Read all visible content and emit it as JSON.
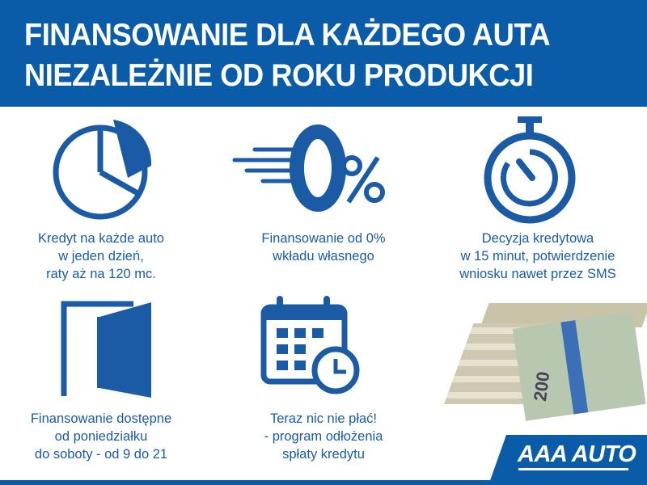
{
  "header": {
    "line1": "FINANSOWANIE DLA KAŻDEGO AUTA",
    "line2": "NIEZALEŻNIE OD ROKU PRODUKCJI"
  },
  "features": [
    {
      "icon": "pie-chart-icon",
      "lines": [
        "Kredyt na każde auto",
        "w jeden dzień,",
        "raty aż na 120 mc."
      ]
    },
    {
      "icon": "zero-percent-icon",
      "lines": [
        "Finansowanie od 0%",
        "wkładu własnego"
      ]
    },
    {
      "icon": "stopwatch-icon",
      "lines": [
        "Decyzja kredytowa",
        "w 15 minut, potwierdzenie",
        "wniosku nawet przez SMS"
      ]
    },
    {
      "icon": "door-icon",
      "lines": [
        "Finansowanie dostępne",
        "od poniedziałku",
        "do soboty - od 9 do 21"
      ]
    },
    {
      "icon": "calendar-clock-icon",
      "lines": [
        "Teraz nic nie płać!",
        "- program odłożenia",
        "spłaty kredytu"
      ]
    }
  ],
  "money_image": {
    "icon": "banknotes-stack-icon",
    "note_value": "200"
  },
  "logo": {
    "text": "AAA AUTO"
  },
  "colors": {
    "brand_blue": "#0b5ca8",
    "text_blue": "#1b5ba6"
  }
}
